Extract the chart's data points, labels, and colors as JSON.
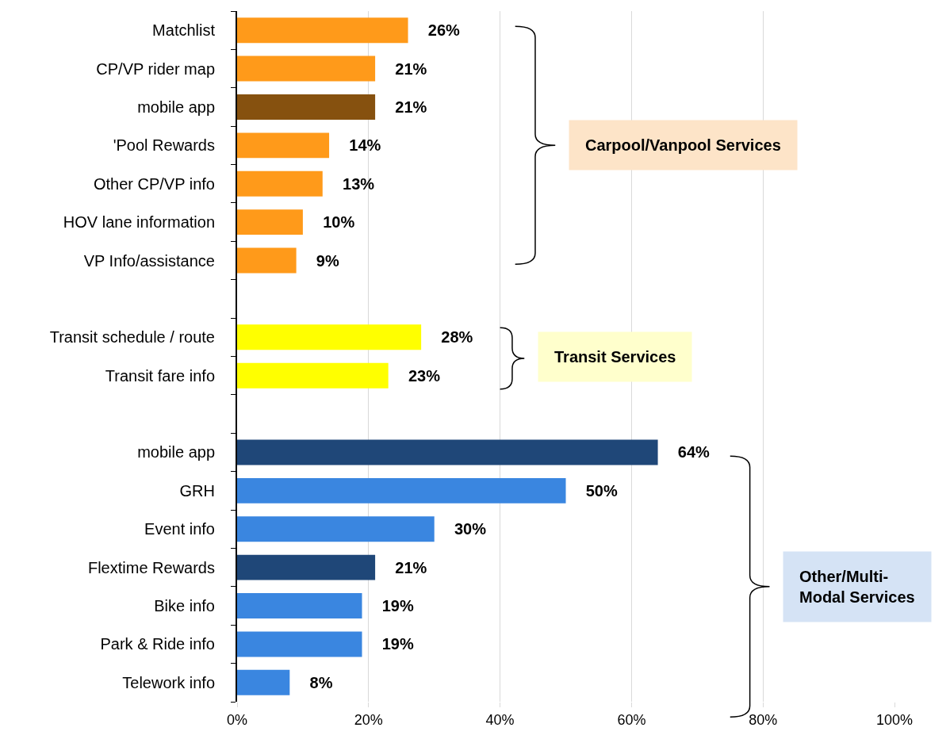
{
  "chart_data": {
    "type": "bar",
    "orientation": "horizontal",
    "categories": [
      "Matchlist",
      "CP/VP rider map",
      "mobile app",
      "'Pool Rewards",
      "Other CP/VP info",
      "HOV lane information",
      "VP Info/assistance",
      null,
      "Transit schedule / route",
      "Transit fare info",
      null,
      "mobile app",
      "GRH",
      "Event info",
      "Flextime Rewards",
      "Bike info",
      "Park & Ride info",
      "Telework info"
    ],
    "values": [
      26,
      21,
      21,
      14,
      13,
      10,
      9,
      null,
      28,
      23,
      null,
      64,
      50,
      30,
      21,
      19,
      19,
      8
    ],
    "colors": [
      "#ff9a1a",
      "#ff9a1a",
      "#86510f",
      "#ff9a1a",
      "#ff9a1a",
      "#ff9a1a",
      "#ff9a1a",
      "#ffffff",
      "#ffff00",
      "#ffff00",
      "#ffffff",
      "#1f4778",
      "#3a86e0",
      "#3a86e0",
      "#1f4778",
      "#3a86e0",
      "#3a86e0",
      "#3a86e0"
    ],
    "value_labels": [
      "26%",
      "21%",
      "21%",
      "14%",
      "13%",
      "10%",
      "9%",
      null,
      "28%",
      "23%",
      null,
      "64%",
      "50%",
      "30%",
      "21%",
      "19%",
      "19%",
      "8%"
    ],
    "xlim": [
      0,
      100
    ],
    "xticks": [
      {
        "value": 0,
        "label": "0%"
      },
      {
        "value": 20,
        "label": "20%"
      },
      {
        "value": 40,
        "label": "40%"
      },
      {
        "value": 60,
        "label": "60%"
      },
      {
        "value": 80,
        "label": "80%"
      },
      {
        "value": 100,
        "label": "100%"
      }
    ],
    "grid": "x",
    "annotations": [
      "Carpool/Vanpool Services",
      "Transit Services",
      "Other/Multi-Modal Services"
    ]
  }
}
